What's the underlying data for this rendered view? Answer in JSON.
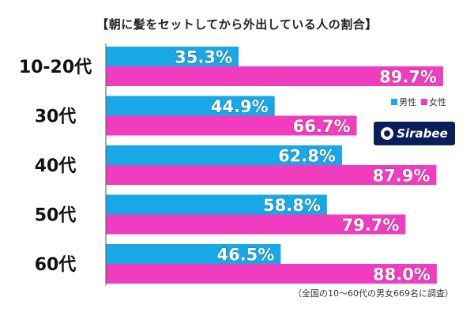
{
  "chart_data": {
    "type": "bar",
    "orientation": "horizontal",
    "title": "【朝に髪をセットしてから外出している人の割合】",
    "categories": [
      "10-20代",
      "30代",
      "40代",
      "50代",
      "60代"
    ],
    "series": [
      {
        "name": "男性",
        "color": "#18a8e6",
        "values": [
          35.3,
          44.9,
          62.8,
          58.8,
          46.5
        ]
      },
      {
        "name": "女性",
        "color": "#f03cbe",
        "values": [
          89.7,
          66.7,
          87.9,
          79.7,
          88.0
        ]
      }
    ],
    "value_labels": [
      [
        "35.3%",
        "44.9%",
        "62.8%",
        "58.8%",
        "46.5%"
      ],
      [
        "89.7%",
        "66.7%",
        "87.9%",
        "79.7%",
        "88.0%"
      ]
    ],
    "xlim": [
      0,
      100
    ],
    "unit": "%",
    "legend_position": "right",
    "grid": false
  },
  "legend": {
    "male_label": "男性",
    "female_label": "女性"
  },
  "brand": {
    "name": "Sirabee",
    "icon": "sirabee-logo-icon"
  },
  "footnote": "（全国の10～60代の男女669名に調査）"
}
